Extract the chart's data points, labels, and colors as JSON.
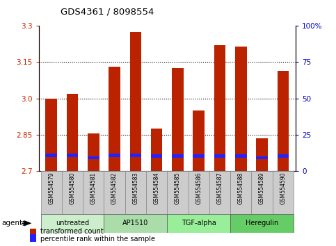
{
  "title": "GDS4361 / 8098554",
  "samples": [
    "GSM554579",
    "GSM554580",
    "GSM554581",
    "GSM554582",
    "GSM554583",
    "GSM554584",
    "GSM554585",
    "GSM554586",
    "GSM554587",
    "GSM554588",
    "GSM554589",
    "GSM554590"
  ],
  "red_values": [
    3.0,
    3.02,
    2.855,
    3.13,
    3.275,
    2.875,
    3.125,
    2.95,
    3.22,
    3.215,
    2.835,
    3.115
  ],
  "blue_values": [
    2.765,
    2.765,
    2.755,
    2.765,
    2.765,
    2.762,
    2.762,
    2.762,
    2.762,
    2.762,
    2.755,
    2.762
  ],
  "y_min": 2.7,
  "y_max": 3.3,
  "y_ticks_left": [
    2.7,
    2.85,
    3.0,
    3.15,
    3.3
  ],
  "y_ticks_right_pct": [
    0,
    25,
    50,
    75,
    100
  ],
  "agents": [
    {
      "label": "untreated",
      "start": 0,
      "end": 3
    },
    {
      "label": "AP1510",
      "start": 3,
      "end": 6
    },
    {
      "label": "TGF-alpha",
      "start": 6,
      "end": 9
    },
    {
      "label": "Heregulin",
      "start": 9,
      "end": 12
    }
  ],
  "agent_label": "agent",
  "bar_color": "#bb2200",
  "blue_color": "#2222ff",
  "background_color": "#ffffff",
  "tick_color_left": "#cc2200",
  "tick_color_right": "#0000cc",
  "legend_red": "transformed count",
  "legend_blue": "percentile rank within the sample",
  "bar_width": 0.55,
  "agent_color": "#99ee99",
  "sample_box_color": "#cccccc",
  "grid_color": "#000000"
}
